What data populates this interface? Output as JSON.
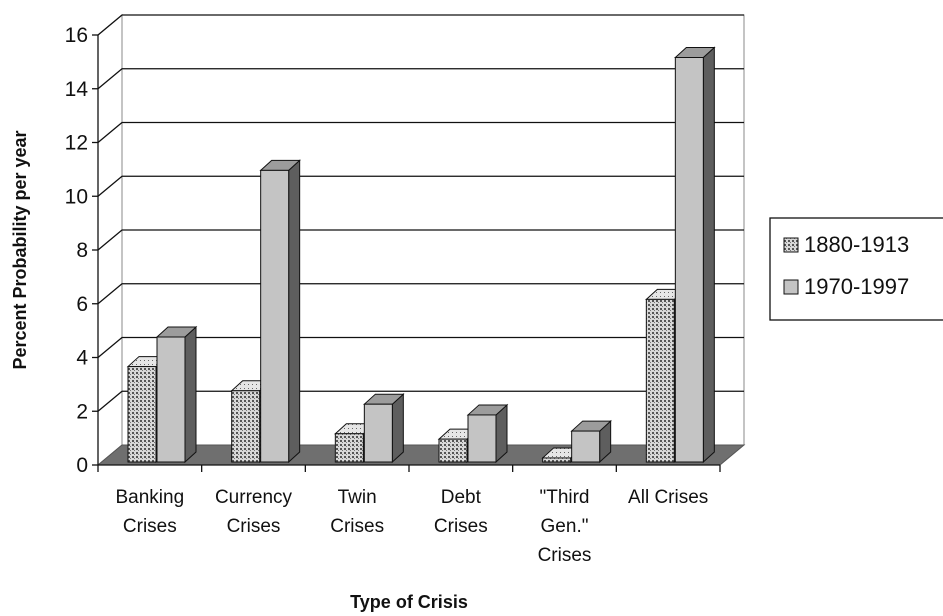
{
  "chart_data": {
    "type": "bar",
    "title": "",
    "xlabel": "Type of Crisis",
    "ylabel": "Percent Probability per year",
    "ylim": [
      0,
      16
    ],
    "yticks": [
      0,
      2,
      4,
      6,
      8,
      10,
      12,
      14,
      16
    ],
    "grid": true,
    "legend_position": "right",
    "categories": [
      [
        "Banking",
        "Crises"
      ],
      [
        "Currency",
        "Crises"
      ],
      [
        "Twin",
        "Crises"
      ],
      [
        "Debt",
        "Crises"
      ],
      [
        "\"Third",
        "Gen.\"",
        "Crises"
      ],
      [
        "All Crises"
      ]
    ],
    "series": [
      {
        "name": "1880-1913",
        "values": [
          3.7,
          2.8,
          1.2,
          1.0,
          0.3,
          6.2
        ],
        "pattern": "dotted",
        "color": "#d4d4d4"
      },
      {
        "name": "1970-1997",
        "values": [
          4.8,
          11.0,
          2.3,
          1.9,
          1.3,
          15.2
        ],
        "pattern": "solid",
        "color": "#b8b8b8"
      }
    ]
  }
}
